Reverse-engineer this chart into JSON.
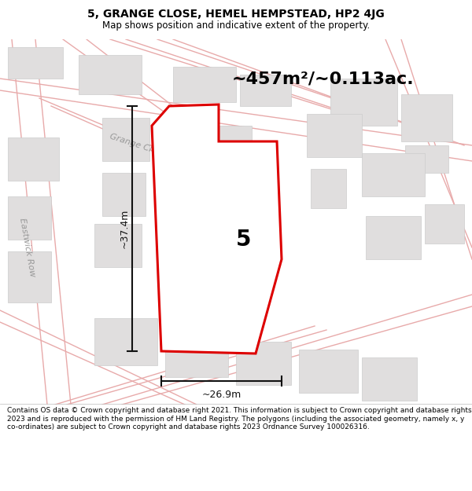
{
  "title": "5, GRANGE CLOSE, HEMEL HEMPSTEAD, HP2 4JG",
  "subtitle": "Map shows position and indicative extent of the property.",
  "area_text": "~457m²/~0.113ac.",
  "width_label": "~26.9m",
  "height_label": "~37.4m",
  "property_number": "5",
  "map_bg": "#ffffff",
  "footer_text": "Contains OS data © Crown copyright and database right 2021. This information is subject to Crown copyright and database rights 2023 and is reproduced with the permission of HM Land Registry. The polygons (including the associated geometry, namely x, y co-ordinates) are subject to Crown copyright and database rights 2023 Ordnance Survey 100026316.",
  "road_color": "#e8aaaa",
  "road_lw": 1.0,
  "building_face": "#e0dede",
  "building_edge": "#cccccc",
  "plot_face": "#ffffff",
  "plot_edge": "#dd0000",
  "plot_edge_lw": 2.2,
  "dim_color": "#111111",
  "label_color": "#999999",
  "area_fontsize": 16,
  "prop_num_fontsize": 20,
  "road_label_fontsize": 8,
  "dim_fontsize": 9,
  "title_fontsize": 10,
  "subtitle_fontsize": 8.5
}
